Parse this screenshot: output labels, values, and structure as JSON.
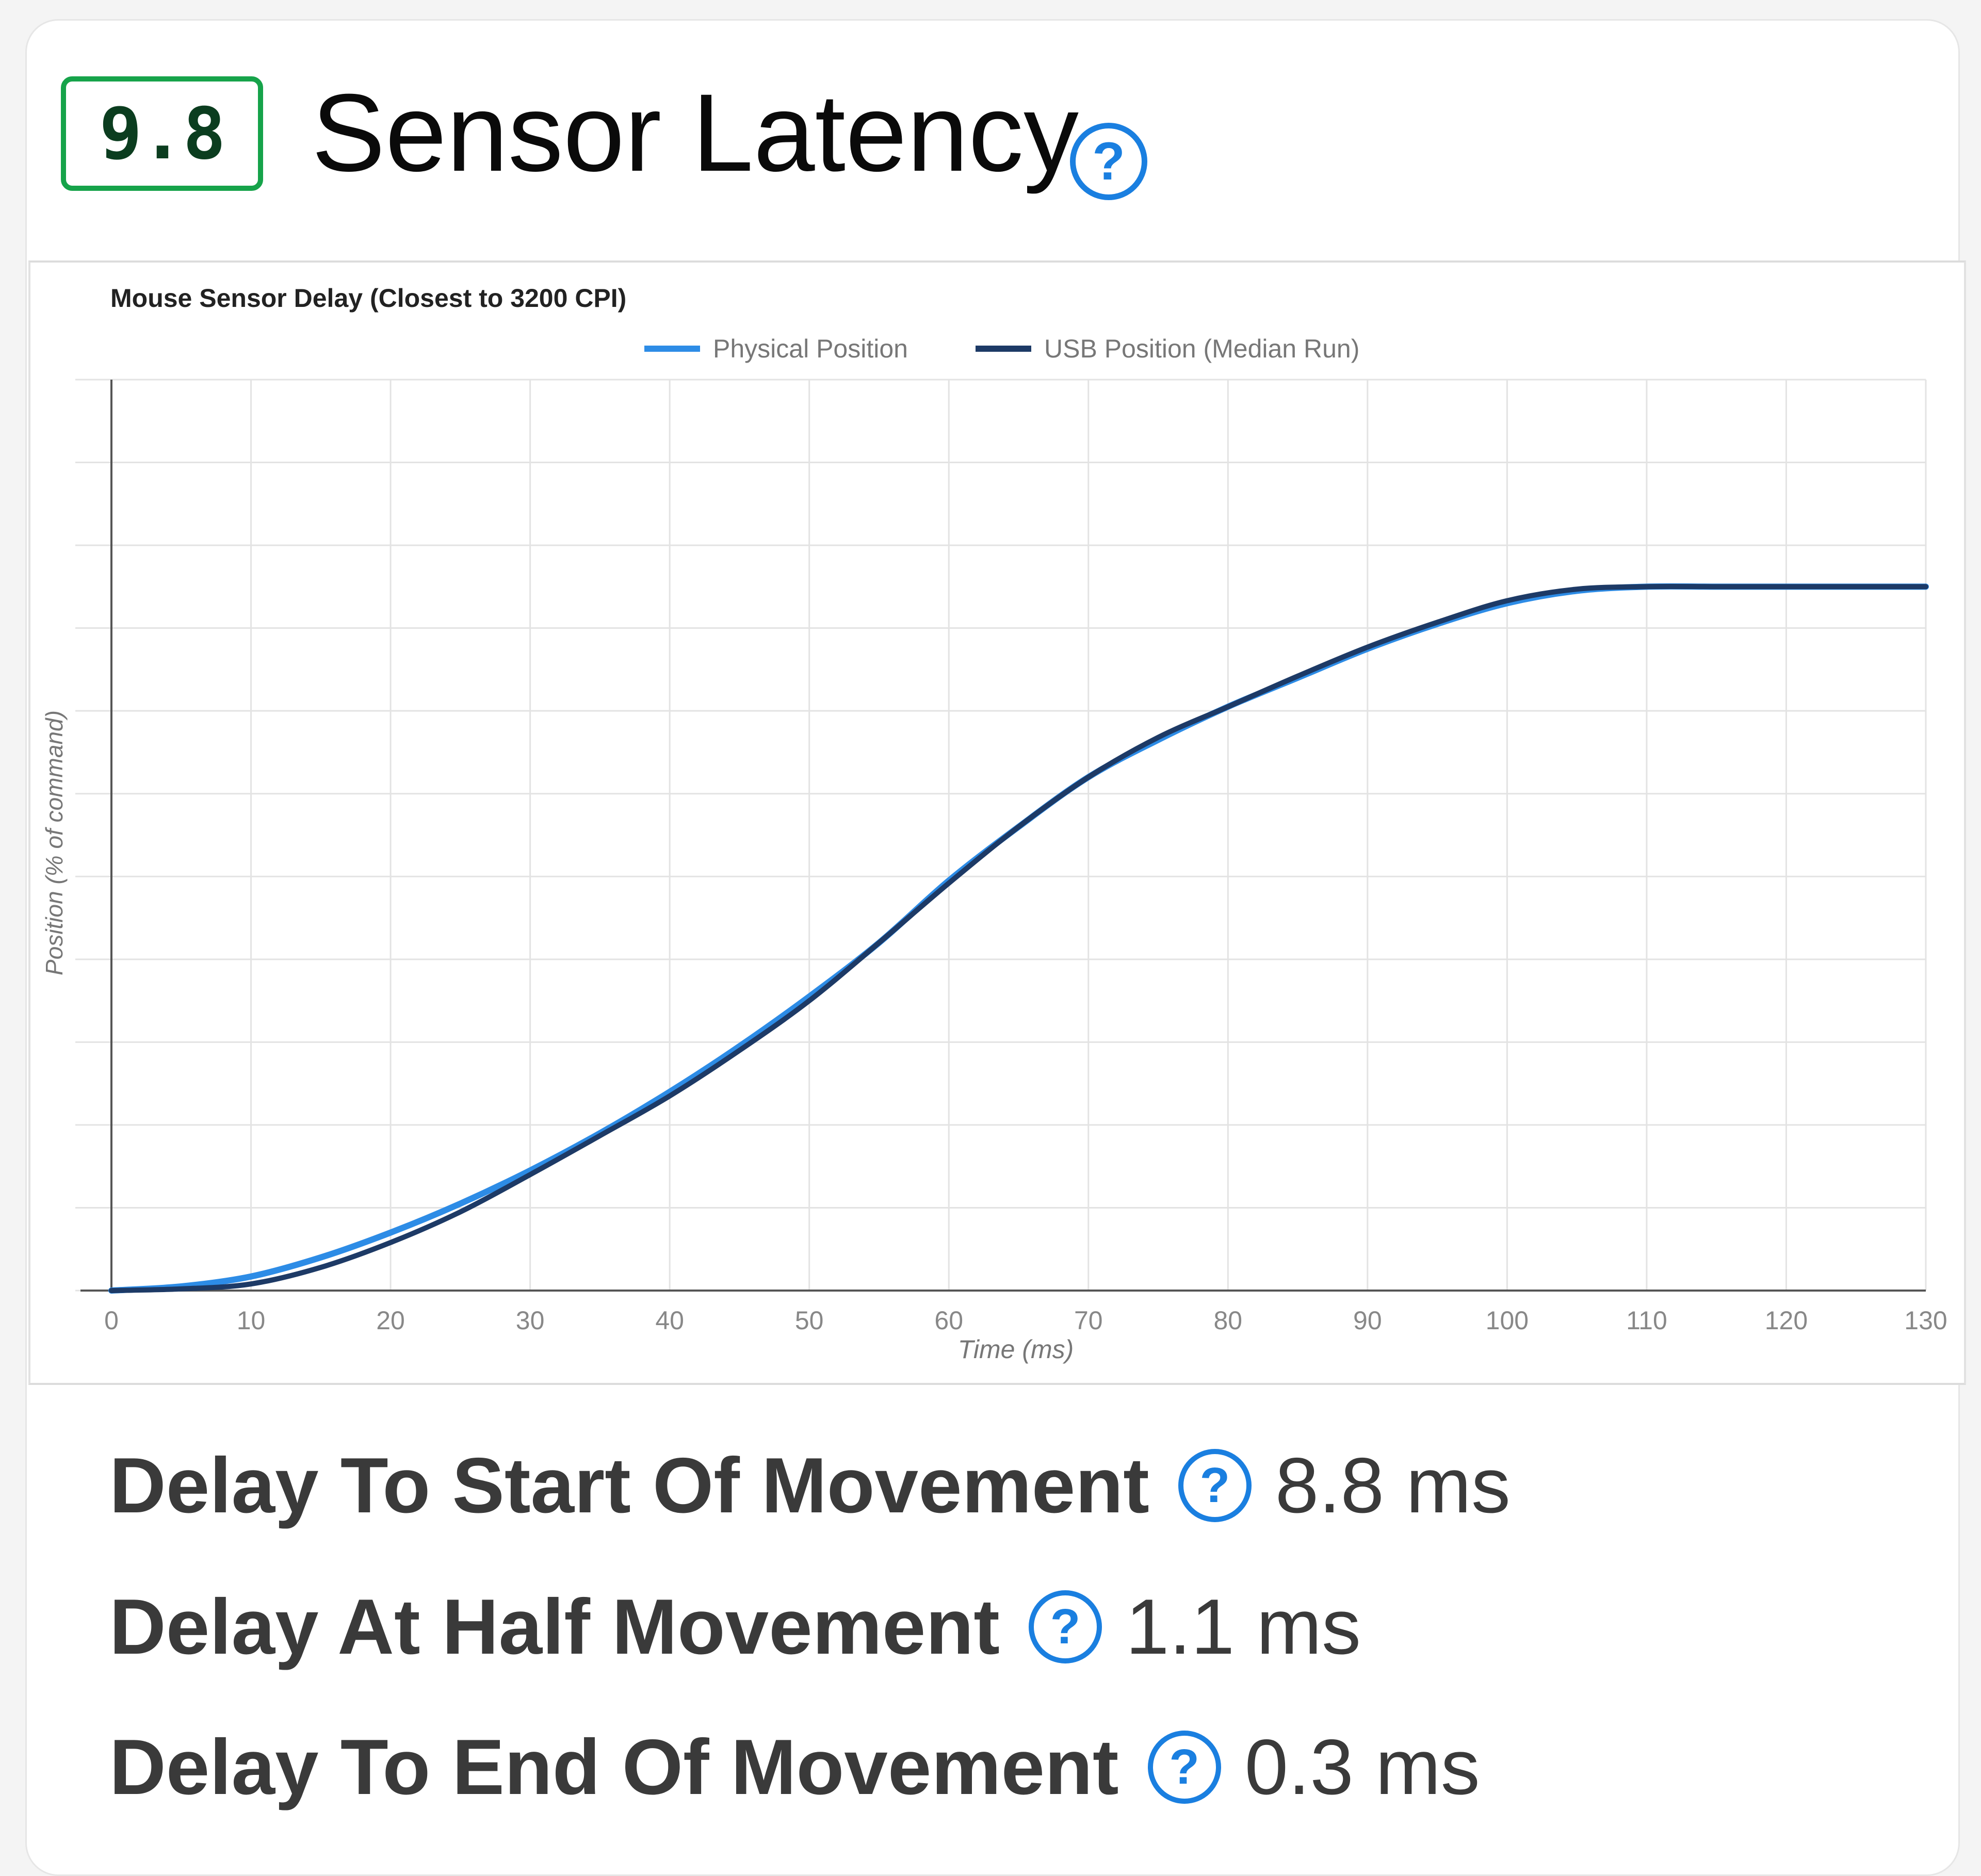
{
  "header": {
    "score": "9.8",
    "title": "Sensor Latency",
    "help_glyph": "?"
  },
  "stats": [
    {
      "label": "Delay To Start Of Movement",
      "value": "8.8 ms"
    },
    {
      "label": "Delay At Half Movement",
      "value": "1.1 ms"
    },
    {
      "label": "Delay To End Of Movement",
      "value": "0.3 ms"
    }
  ],
  "colors": {
    "badge_border": "#16a34a",
    "badge_text": "#0b3d1f",
    "help_icon": "#1a7fe0",
    "physical_series": "#2d8ce6",
    "usb_series": "#1d3a66"
  },
  "icons": {
    "help": "question-circle-icon"
  },
  "chart_data": {
    "type": "line",
    "title": "Mouse Sensor Delay (Closest to 3200 CPI)",
    "xlabel": "Time (ms)",
    "ylabel": "Position (% of command)",
    "xlim": [
      0,
      130
    ],
    "ylim": [
      0,
      110
    ],
    "x_ticks": [
      0,
      10,
      20,
      30,
      40,
      50,
      60,
      70,
      80,
      90,
      100,
      110,
      120,
      130
    ],
    "y_gridlines": [
      0,
      10,
      20,
      30,
      40,
      50,
      60,
      70,
      80,
      90,
      100,
      110
    ],
    "grid": true,
    "legend_position": "top-center",
    "series": [
      {
        "name": "Physical Position",
        "color": "#2d8ce6",
        "x": [
          0,
          5,
          10,
          15,
          20,
          25,
          30,
          35,
          40,
          45,
          50,
          55,
          60,
          65,
          70,
          75,
          80,
          85,
          90,
          95,
          100,
          105,
          110,
          115,
          120,
          125,
          130
        ],
        "y": [
          0,
          0.5,
          1.7,
          4,
          7,
          10.5,
          14.5,
          19,
          24,
          29.5,
          35.5,
          42,
          49.5,
          56,
          62,
          66.5,
          70.5,
          74,
          77.5,
          80.5,
          83,
          84.5,
          85,
          85,
          85,
          85,
          85
        ]
      },
      {
        "name": "USB Position (Median Run)",
        "color": "#1d3a66",
        "x": [
          0,
          5,
          10,
          15,
          20,
          25,
          30,
          35,
          40,
          45,
          50,
          55,
          60,
          65,
          70,
          75,
          80,
          85,
          90,
          95,
          100,
          105,
          110,
          115,
          120,
          125,
          130
        ],
        "y": [
          0,
          0.2,
          0.8,
          2.8,
          5.8,
          9.5,
          14,
          18.7,
          23.5,
          29,
          35,
          42,
          49.2,
          56,
          62,
          66.8,
          70.5,
          74.2,
          77.7,
          80.7,
          83.3,
          84.7,
          85,
          85,
          85,
          85,
          85
        ]
      }
    ]
  }
}
